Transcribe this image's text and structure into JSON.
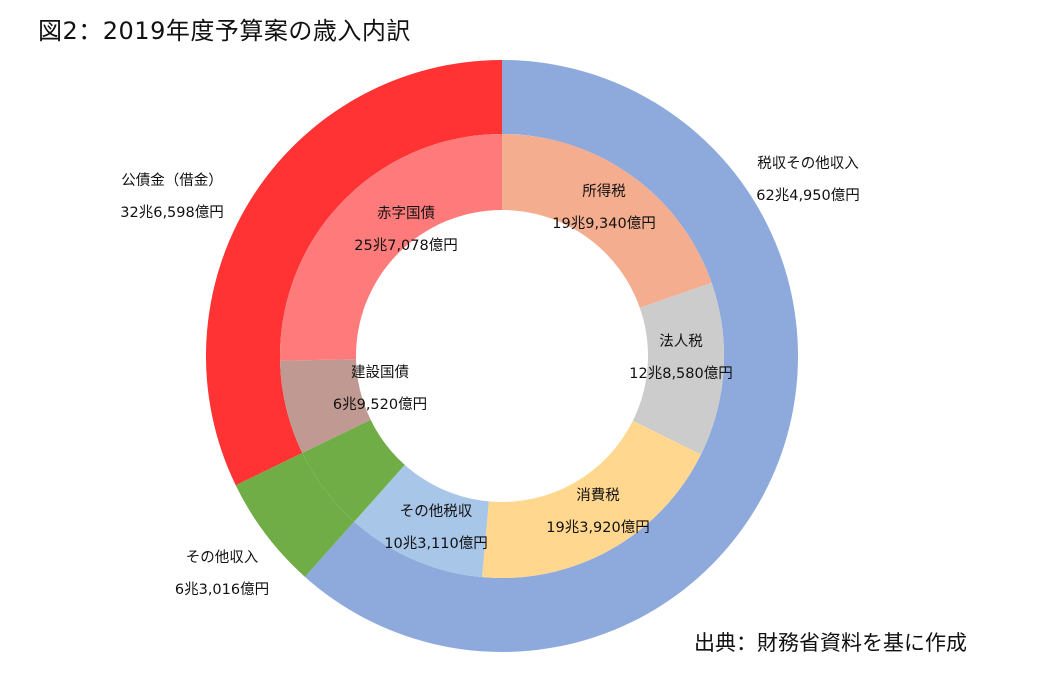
{
  "title": "図2：2019年度予算案の歳入内訳",
  "source": "出典：財務省資料を基に作成",
  "chart_data": [
    {
      "type": "donut",
      "ring": "outer",
      "start": "12 o'clock, clockwise",
      "categories": [
        "税収その他収入",
        "その他収入",
        "公債金（借金）"
      ],
      "values": [
        62.495,
        6.3016,
        32.6598
      ],
      "value_labels": [
        "62兆4,950億円",
        "6兆3,016億円",
        "32兆6,598億円"
      ],
      "colors": [
        "#8eaadc",
        "#70ad47",
        "#ff3333"
      ]
    },
    {
      "type": "donut",
      "ring": "inner",
      "start": "12 o'clock, clockwise",
      "categories": [
        "所得税",
        "法人税",
        "消費税",
        "その他税収",
        "その他収入",
        "建設国債",
        "赤字国債"
      ],
      "values": [
        19.934,
        12.858,
        19.392,
        10.311,
        6.3016,
        6.952,
        25.7078
      ],
      "value_labels": [
        "19兆9,340億円",
        "12兆8,580億円",
        "19兆3,920億円",
        "10兆3,110億円",
        "",
        "6兆9,520億円",
        "25兆7,078億円"
      ],
      "colors": [
        "#f5ad8f",
        "#cccccc",
        "#ffd78e",
        "#a8c6e8",
        "#70ad47",
        "#c09a92",
        "#ff7b7b"
      ]
    }
  ]
}
